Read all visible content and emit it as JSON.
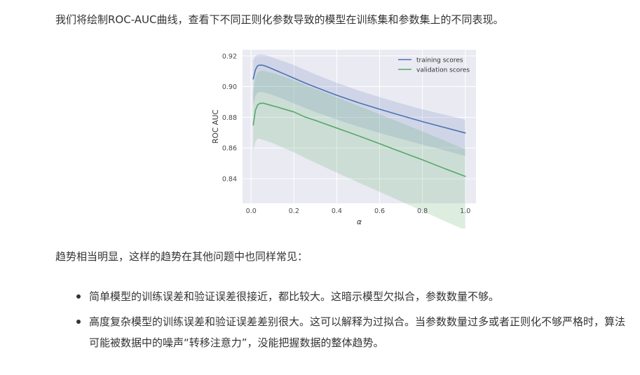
{
  "intro_text": "我们将绘制ROC-AUC曲线，查看下不同正则化参数导致的模型在训练集和参数集上的不同表现。",
  "trend_text": "趋势相当明显，这样的趋势在其他问题中也同样常见：",
  "bullets": [
    "简单模型的训练误差和验证误差很接近，都比较大。这暗示模型欠拟合，参数数量不够。",
    "高度复杂模型的训练误差和验证误差差别很大。这可以解释为过拟合。当参数数量过多或者正则化不够严格时，算法可能被数据中的噪声“转移注意力”，没能把握数据的整体趋势。"
  ],
  "chart_data": {
    "type": "line",
    "xlabel": "α",
    "ylabel": "ROC AUC",
    "xlim": [
      -0.04,
      1.05
    ],
    "ylim": [
      0.824,
      0.924
    ],
    "xticks": [
      "0.0",
      "0.2",
      "0.4",
      "0.6",
      "0.8",
      "1.0"
    ],
    "yticks": [
      "0.84",
      "0.86",
      "0.88",
      "0.90",
      "0.92"
    ],
    "grid": true,
    "legend_position": "top-right",
    "colors": {
      "background": "#eaeaf2",
      "grid": "#ffffff",
      "training": "#4c72b0",
      "validation": "#55a868"
    },
    "x": [
      0.01,
      0.02,
      0.03,
      0.04,
      0.05,
      0.06,
      0.08,
      0.1,
      0.12,
      0.15,
      0.2,
      0.25,
      0.3,
      0.35,
      0.4,
      0.45,
      0.5,
      0.6,
      0.7,
      0.8,
      0.9,
      1.0
    ],
    "series": [
      {
        "name": "training scores",
        "values": [
          0.905,
          0.911,
          0.9135,
          0.914,
          0.914,
          0.9137,
          0.9127,
          0.9115,
          0.9103,
          0.9085,
          0.9055,
          0.9025,
          0.8997,
          0.897,
          0.8944,
          0.892,
          0.8896,
          0.8853,
          0.8812,
          0.8772,
          0.8735,
          0.8698
        ],
        "band_low": [
          0.888,
          0.894,
          0.896,
          0.8965,
          0.8965,
          0.8962,
          0.8955,
          0.8945,
          0.8935,
          0.892,
          0.889,
          0.8862,
          0.8835,
          0.881,
          0.8786,
          0.8762,
          0.874,
          0.8698,
          0.866,
          0.8622,
          0.8586,
          0.8548
        ],
        "band_high": [
          0.917,
          0.9198,
          0.9208,
          0.921,
          0.921,
          0.9207,
          0.92,
          0.919,
          0.918,
          0.9165,
          0.914,
          0.911,
          0.908,
          0.9052,
          0.9025,
          0.9,
          0.8975,
          0.8932,
          0.889,
          0.8852,
          0.8818,
          0.8785
        ]
      },
      {
        "name": "validation scores",
        "values": [
          0.875,
          0.8845,
          0.888,
          0.889,
          0.8892,
          0.8891,
          0.8883,
          0.8875,
          0.8868,
          0.8855,
          0.8835,
          0.8803,
          0.878,
          0.8755,
          0.873,
          0.8705,
          0.868,
          0.8628,
          0.8575,
          0.8523,
          0.8468,
          0.8415
        ],
        "band_low": [
          0.858,
          0.864,
          0.866,
          0.866,
          0.8655,
          0.8652,
          0.8642,
          0.8632,
          0.862,
          0.8602,
          0.8572,
          0.8536,
          0.8505,
          0.8472,
          0.844,
          0.8408,
          0.8376,
          0.8315,
          0.8252,
          0.819,
          0.8126,
          0.8065
        ],
        "band_high": [
          0.896,
          0.9058,
          0.909,
          0.91,
          0.9103,
          0.9102,
          0.9095,
          0.9088,
          0.908,
          0.9066,
          0.9042,
          0.9012,
          0.8985,
          0.8958,
          0.893,
          0.8902,
          0.8875,
          0.882,
          0.8764,
          0.8708,
          0.865,
          0.8592
        ]
      }
    ]
  }
}
